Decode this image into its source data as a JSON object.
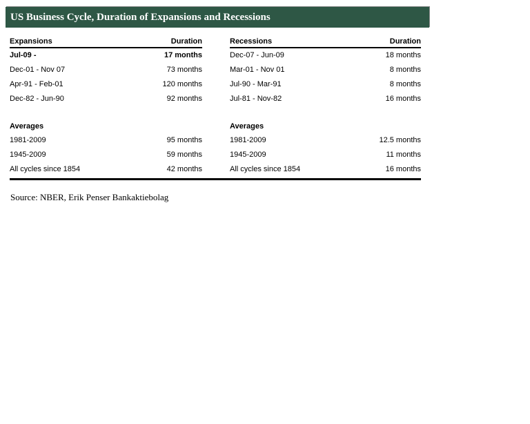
{
  "title_bar": {
    "title": "US Business Cycle, Duration of Expansions and Recessions",
    "background_color": "#2E5745",
    "text_color": "#FFFFFF"
  },
  "table": {
    "expansions": {
      "header": "Expansions",
      "duration_header": "Duration",
      "rows": [
        {
          "period": "Jul-09 -",
          "duration": "17 months",
          "bold": true
        },
        {
          "period": "Dec-01 - Nov 07",
          "duration": "73 months",
          "bold": false
        },
        {
          "period": "Apr-91 - Feb-01",
          "duration": "120 months",
          "bold": false
        },
        {
          "period": "Dec-82 - Jun-90",
          "duration": "92 months",
          "bold": false
        }
      ],
      "averages_label": "Averages",
      "averages": [
        {
          "period": "1981-2009",
          "duration": "95 months"
        },
        {
          "period": "1945-2009",
          "duration": "59 months"
        },
        {
          "period": "All cycles since 1854",
          "duration": "42 months"
        }
      ]
    },
    "recessions": {
      "header": "Recessions",
      "duration_header": "Duration",
      "rows": [
        {
          "period": "Dec-07 - Jun-09",
          "duration": "18 months",
          "bold": false
        },
        {
          "period": "Mar-01 - Nov 01",
          "duration": "8 months",
          "bold": false
        },
        {
          "period": "Jul-90 - Mar-91",
          "duration": "8 months",
          "bold": false
        },
        {
          "period": "Jul-81 - Nov-82",
          "duration": "16 months",
          "bold": false
        }
      ],
      "averages_label": "Averages",
      "averages": [
        {
          "period": "1981-2009",
          "duration": "12.5 months"
        },
        {
          "period": "1945-2009",
          "duration": "11 months"
        },
        {
          "period": "All cycles since 1854",
          "duration": "16 months"
        }
      ]
    }
  },
  "source_line": "Source: NBER, Erik Penser Bankaktiebolag",
  "colors": {
    "header_bar": "#2E5745",
    "rule": "#000000",
    "text": "#000000"
  }
}
